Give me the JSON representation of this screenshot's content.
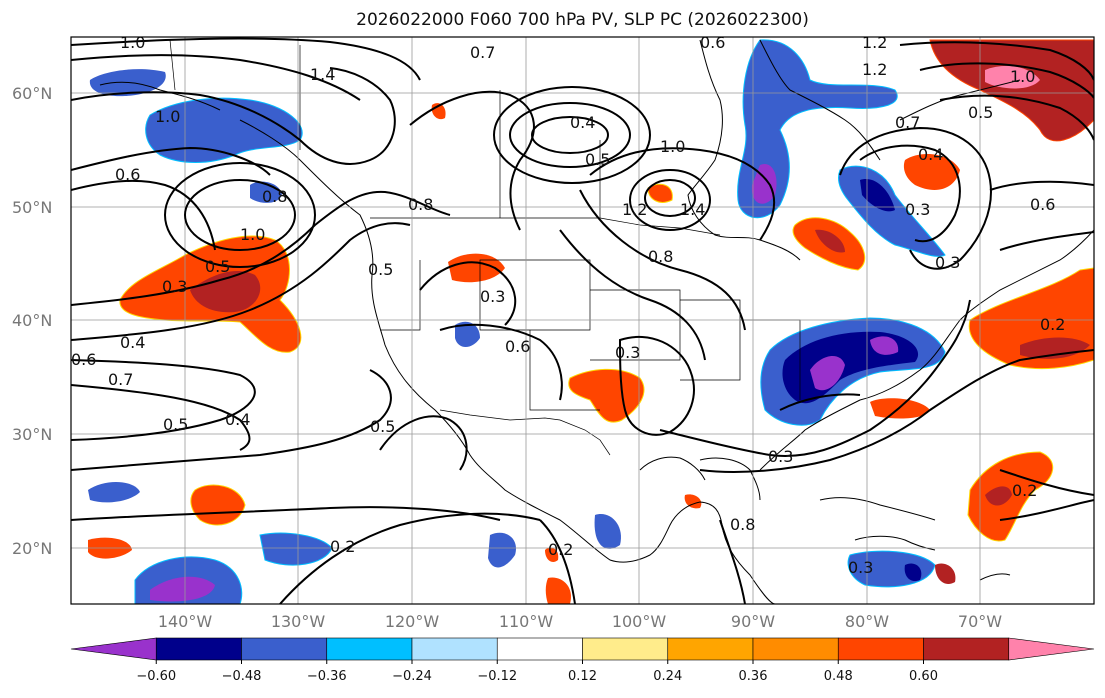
{
  "title": "2026022000 F060 700 hPa PV, SLP PC (2026022300)",
  "axes": {
    "lat_labels": [
      "60°N",
      "50°N",
      "40°N",
      "30°N",
      "20°N"
    ],
    "lon_labels": [
      "140°W",
      "130°W",
      "120°W",
      "110°W",
      "100°W",
      "90°W",
      "80°W",
      "70°W"
    ]
  },
  "colorbar": {
    "colors": [
      "#9932cc",
      "#00008b",
      "#3a5fcd",
      "#00bfff",
      "#b0e2ff",
      "#ffffff",
      "#ffec8b",
      "#ffa500",
      "#ff8c00",
      "#ff4500",
      "#b22222",
      "#ff82ab"
    ],
    "tick_labels": [
      "−0.60",
      "−0.48",
      "−0.36",
      "−0.24",
      "−0.12",
      "0.12",
      "0.24",
      "0.36",
      "0.48",
      "0.60"
    ]
  },
  "contour_labels": [
    "1.0",
    "1.4",
    "0.7",
    "0.6",
    "1.2",
    "1.0",
    "0.6",
    "0.8",
    "1.0",
    "0.5",
    "0.3",
    "0.4",
    "0.6",
    "0.7",
    "0.5",
    "0.4",
    "0.5",
    "0.2",
    "0.8",
    "0.4",
    "0.5",
    "1.0",
    "1.2",
    "1.4",
    "0.8",
    "0.6",
    "0.3",
    "0.3",
    "0.2",
    "0.3",
    "0.2",
    "0.3",
    "0.8",
    "0.3",
    "0.7",
    "0.4",
    "0.6",
    "0.5",
    "1.0",
    "0.2",
    "0.3",
    "1.2",
    "0.5"
  ]
}
